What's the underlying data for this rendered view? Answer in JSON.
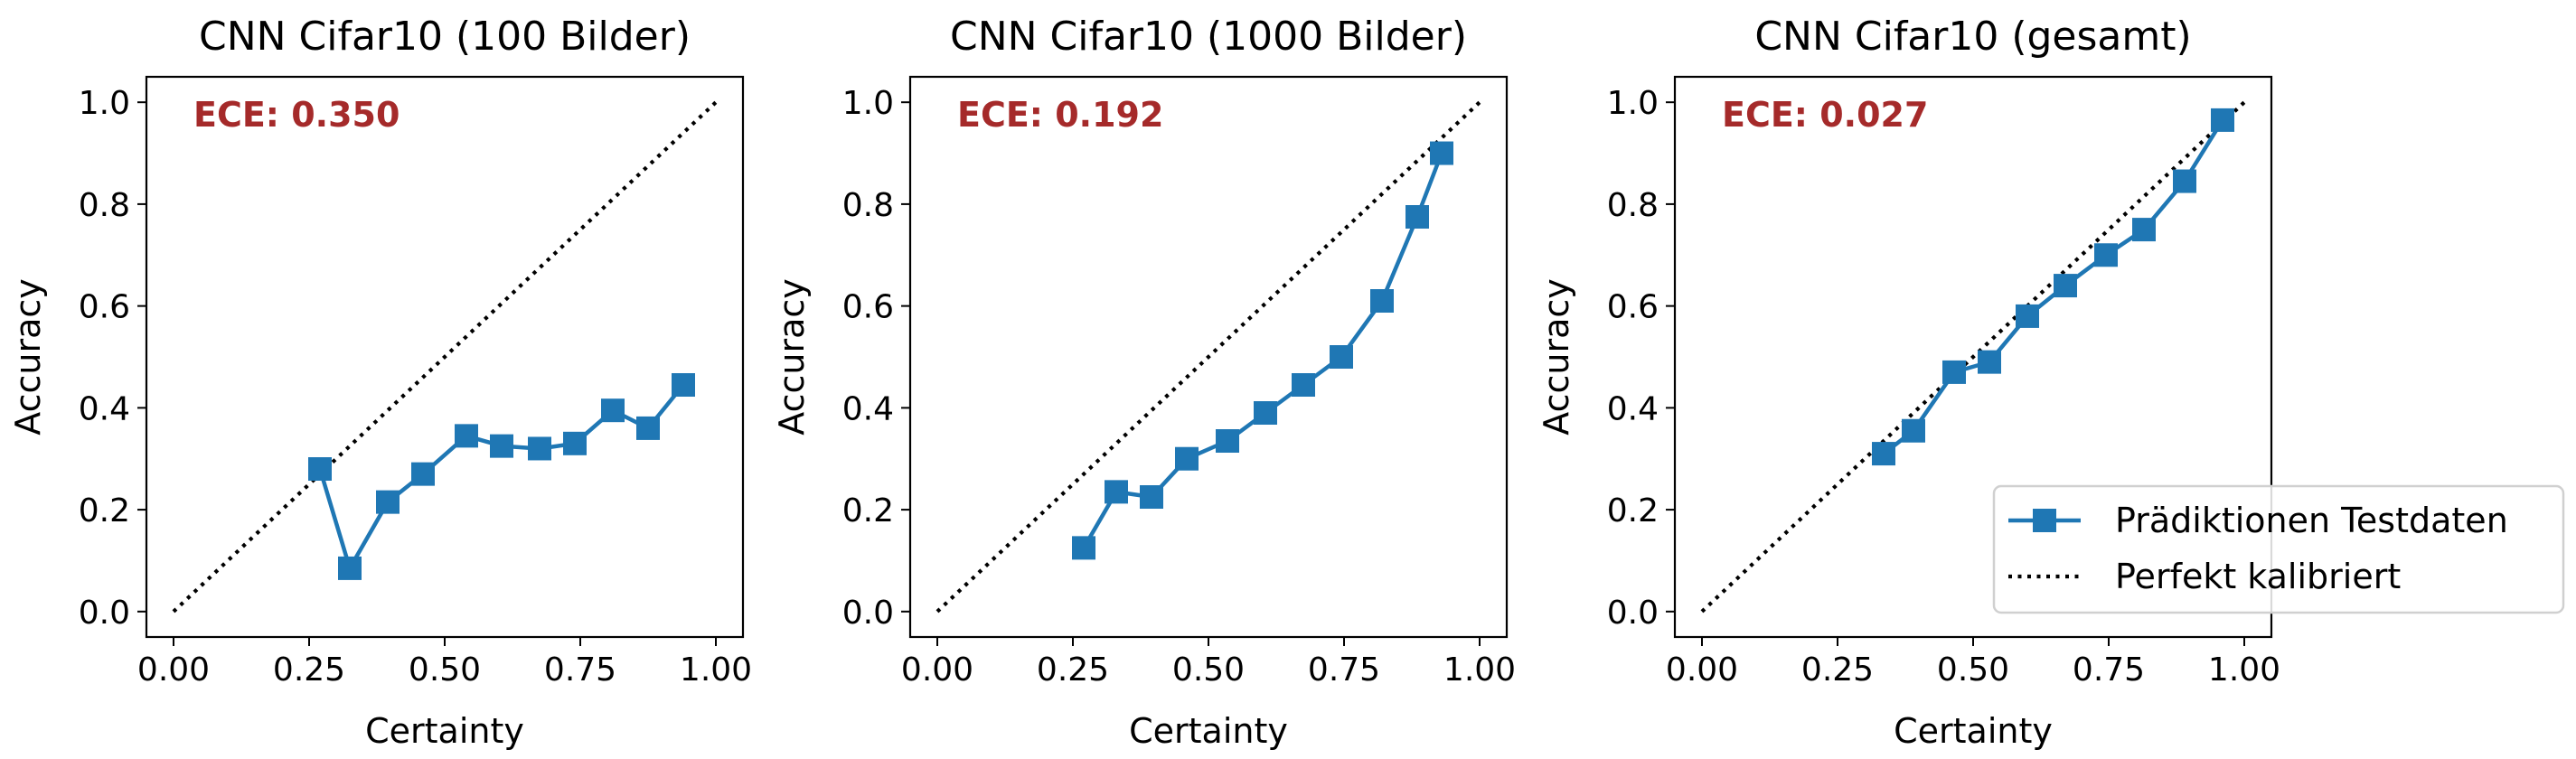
{
  "colors": {
    "series": "#1f77b4",
    "ece": "#a52a2a",
    "diagonal": "#000000",
    "axis": "#000000"
  },
  "legend": {
    "placement": "lower-right of third panel",
    "entries": [
      {
        "label": "Prädiktionen Testdaten",
        "style": "line-square-marker"
      },
      {
        "label": "Perfekt kalibriert",
        "style": "dotted-line"
      }
    ]
  },
  "chart_data": [
    {
      "type": "line",
      "title": "CNN Cifar10 (100 Bilder)",
      "xlabel": "Certainty",
      "ylabel": "Accuracy",
      "xlim": [
        -0.05,
        1.05
      ],
      "ylim": [
        -0.05,
        1.05
      ],
      "xticks": [
        "0.00",
        "0.25",
        "0.50",
        "0.75",
        "1.00"
      ],
      "yticks": [
        "0.0",
        "0.2",
        "0.4",
        "0.6",
        "0.8",
        "1.0"
      ],
      "annotation": "ECE: 0.350",
      "grid": false,
      "series": [
        {
          "name": "Prädiktionen Testdaten",
          "marker": "square",
          "x": [
            0.27,
            0.325,
            0.395,
            0.46,
            0.54,
            0.605,
            0.675,
            0.74,
            0.81,
            0.875,
            0.94
          ],
          "y": [
            0.28,
            0.085,
            0.215,
            0.27,
            0.345,
            0.325,
            0.32,
            0.33,
            0.395,
            0.36,
            0.445
          ]
        },
        {
          "name": "Perfekt kalibriert",
          "style": "dotted",
          "x": [
            0,
            1
          ],
          "y": [
            0,
            1
          ]
        }
      ]
    },
    {
      "type": "line",
      "title": "CNN Cifar10 (1000 Bilder)",
      "xlabel": "Certainty",
      "ylabel": "Accuracy",
      "xlim": [
        -0.05,
        1.05
      ],
      "ylim": [
        -0.05,
        1.05
      ],
      "xticks": [
        "0.00",
        "0.25",
        "0.50",
        "0.75",
        "1.00"
      ],
      "yticks": [
        "0.0",
        "0.2",
        "0.4",
        "0.6",
        "0.8",
        "1.0"
      ],
      "annotation": "ECE: 0.192",
      "grid": false,
      "series": [
        {
          "name": "Prädiktionen Testdaten",
          "marker": "square",
          "x": [
            0.27,
            0.33,
            0.395,
            0.46,
            0.535,
            0.605,
            0.675,
            0.745,
            0.82,
            0.885,
            0.93
          ],
          "y": [
            0.125,
            0.235,
            0.225,
            0.3,
            0.335,
            0.39,
            0.445,
            0.5,
            0.61,
            0.775,
            0.9
          ]
        },
        {
          "name": "Perfekt kalibriert",
          "style": "dotted",
          "x": [
            0,
            1
          ],
          "y": [
            0,
            1
          ]
        }
      ]
    },
    {
      "type": "line",
      "title": "CNN Cifar10 (gesamt)",
      "xlabel": "Certainty",
      "ylabel": "Accuracy",
      "xlim": [
        -0.05,
        1.05
      ],
      "ylim": [
        -0.05,
        1.05
      ],
      "xticks": [
        "0.00",
        "0.25",
        "0.50",
        "0.75",
        "1.00"
      ],
      "yticks": [
        "0.0",
        "0.2",
        "0.4",
        "0.6",
        "0.8",
        "1.0"
      ],
      "annotation": "ECE: 0.027",
      "grid": false,
      "series": [
        {
          "name": "Prädiktionen Testdaten",
          "marker": "square",
          "x": [
            0.335,
            0.39,
            0.465,
            0.53,
            0.6,
            0.67,
            0.745,
            0.815,
            0.89,
            0.96
          ],
          "y": [
            0.31,
            0.355,
            0.47,
            0.49,
            0.58,
            0.64,
            0.7,
            0.75,
            0.845,
            0.965
          ]
        },
        {
          "name": "Perfekt kalibriert",
          "style": "dotted",
          "x": [
            0,
            1
          ],
          "y": [
            0,
            1
          ]
        }
      ]
    }
  ]
}
